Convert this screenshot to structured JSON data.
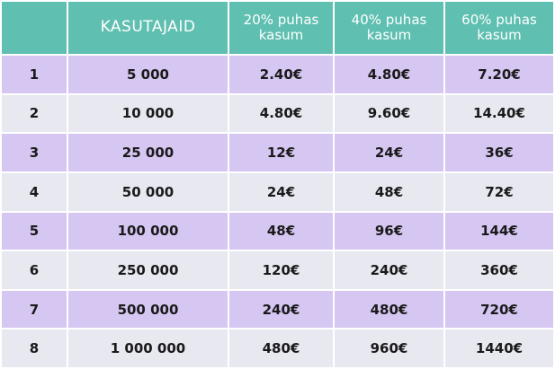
{
  "header": {
    "blank": "",
    "users": "KASUTAJAID",
    "p20_line1": "20% puhas",
    "p20_line2": "kasum",
    "p40_line1": "40%  puhas",
    "p40_line2": "kasum",
    "p60_line1": "60%  puhas",
    "p60_line2": "kasum"
  },
  "rows": [
    {
      "n": "1",
      "users": "5 000",
      "p20": "2.40€",
      "p40": "4.80€",
      "p60": "7.20€"
    },
    {
      "n": "2",
      "users": "10 000",
      "p20": "4.80€",
      "p40": "9.60€",
      "p60": "14.40€"
    },
    {
      "n": "3",
      "users": "25 000",
      "p20": "12€",
      "p40": "24€",
      "p60": "36€"
    },
    {
      "n": "4",
      "users": "50 000",
      "p20": "24€",
      "p40": "48€",
      "p60": "72€"
    },
    {
      "n": "5",
      "users": "100 000",
      "p20": "48€",
      "p40": "96€",
      "p60": "144€"
    },
    {
      "n": "6",
      "users": "250 000",
      "p20": "120€",
      "p40": "240€",
      "p60": "360€"
    },
    {
      "n": "7",
      "users": "500 000",
      "p20": "240€",
      "p40": "480€",
      "p60": "720€"
    },
    {
      "n": "8",
      "users": "1 000 000",
      "p20": "480€",
      "p40": "960€",
      "p60": "1440€"
    }
  ],
  "colors": {
    "header_bg": "#5fbfb0",
    "row_purple": "#d6c6f2",
    "row_grey": "#e7e8f0"
  }
}
